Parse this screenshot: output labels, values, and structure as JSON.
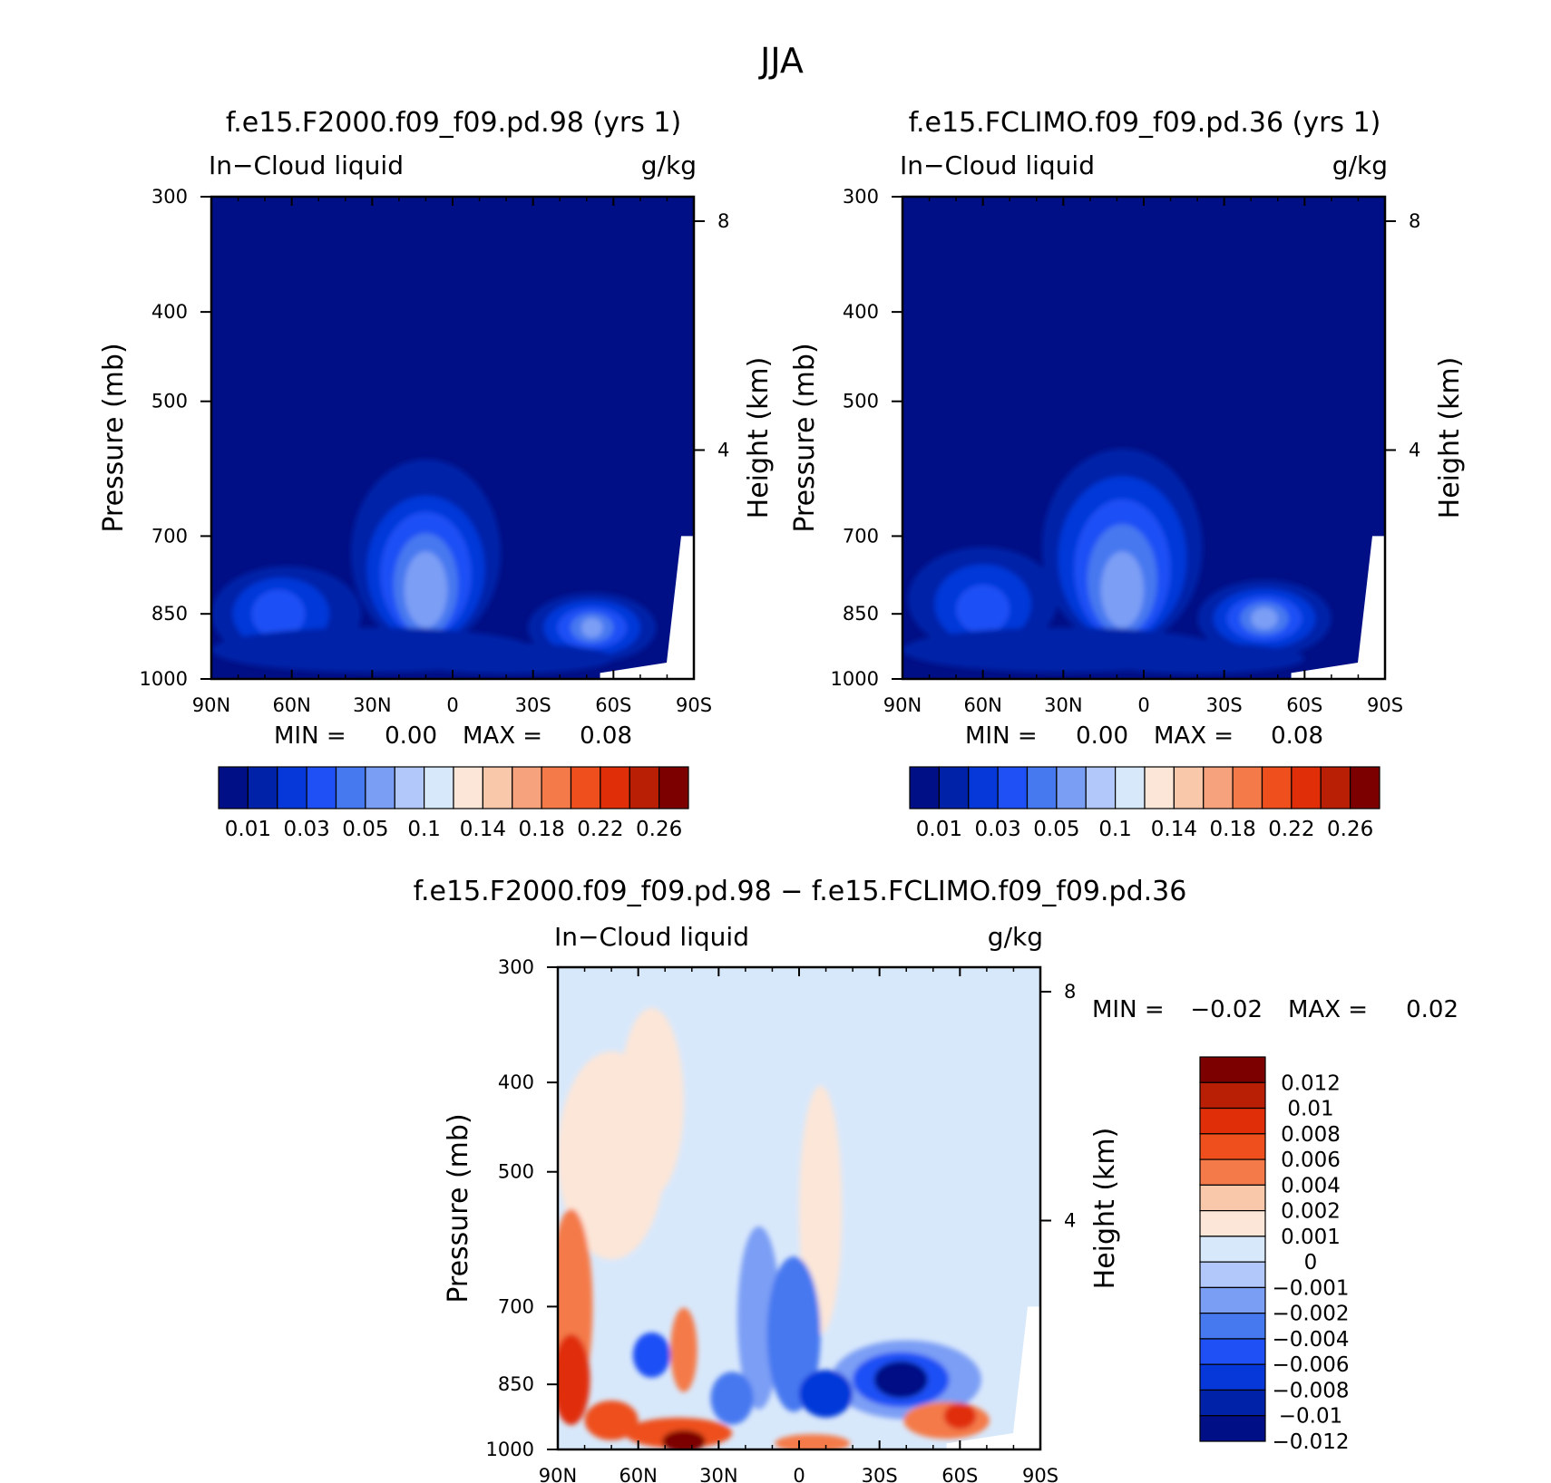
{
  "figure": {
    "title": "JJA"
  },
  "chart_data": [
    {
      "type": "heatmap",
      "title": "f.e15.F2000.f09_f09.pd.98 (yrs  1)",
      "left_label": "In−Cloud liquid",
      "units": "g/kg",
      "xlabel": "",
      "ylabel": "Pressure (mb)",
      "ylabel_right": "Height (km)",
      "x_ticks": [
        "90N",
        "60N",
        "30N",
        "0",
        "30S",
        "60S",
        "90S"
      ],
      "x_values": [
        90,
        60,
        30,
        0,
        -30,
        -60,
        -90
      ],
      "y_ticks": [
        "300",
        "400",
        "500",
        "700",
        "850",
        "1000"
      ],
      "y_values": [
        300,
        400,
        500,
        700,
        850,
        1000
      ],
      "ylim": [
        1000,
        300
      ],
      "height_ticks": [
        "8",
        "4"
      ],
      "height_values": [
        8,
        4
      ],
      "stats": {
        "min_label": "MIN =",
        "min": "0.00",
        "max_label": "MAX =",
        "max": "0.08"
      },
      "colorbar": {
        "orientation": "horizontal",
        "colors": [
          "#000f85",
          "#0022a8",
          "#0537d9",
          "#1e50f5",
          "#4678f0",
          "#7b9ef5",
          "#b3c8fa",
          "#d8e8fb",
          "#fce6d8",
          "#f9c7aa",
          "#f6a27c",
          "#f47a4a",
          "#ee4f1d",
          "#e02f08",
          "#b81f04",
          "#7d0000"
        ],
        "labels": [
          "0.01",
          "0.03",
          "0.05",
          "0.1",
          "0.14",
          "0.18",
          "0.22",
          "0.26"
        ]
      },
      "field": {
        "background": "#000f85",
        "note": "Contours of zonal-mean in-cloud liquid water (g/kg); peak near 10N around 600-850 mb, secondary maxima near 60N and 55S",
        "blobs": [
          {
            "lat": 10,
            "p": 730,
            "dlat": 28,
            "dp": 260,
            "level": 1
          },
          {
            "lat": 10,
            "p": 760,
            "dlat": 22,
            "dp": 210,
            "level": 2
          },
          {
            "lat": 10,
            "p": 770,
            "dlat": 17,
            "dp": 180,
            "level": 3
          },
          {
            "lat": 10,
            "p": 790,
            "dlat": 12,
            "dp": 150,
            "level": 4
          },
          {
            "lat": 10,
            "p": 800,
            "dlat": 8,
            "dp": 110,
            "level": 5
          },
          {
            "lat": 62,
            "p": 850,
            "dlat": 28,
            "dp": 150,
            "level": 1
          },
          {
            "lat": 64,
            "p": 850,
            "dlat": 18,
            "dp": 110,
            "level": 2
          },
          {
            "lat": 65,
            "p": 850,
            "dlat": 10,
            "dp": 70,
            "level": 3
          },
          {
            "lat": -52,
            "p": 880,
            "dlat": 24,
            "dp": 110,
            "level": 1
          },
          {
            "lat": -52,
            "p": 880,
            "dlat": 18,
            "dp": 85,
            "level": 2
          },
          {
            "lat": -52,
            "p": 880,
            "dlat": 13,
            "dp": 60,
            "level": 3
          },
          {
            "lat": -52,
            "p": 880,
            "dlat": 8,
            "dp": 40,
            "level": 4
          },
          {
            "lat": -52,
            "p": 880,
            "dlat": 4,
            "dp": 22,
            "level": 5
          },
          {
            "lat": 30,
            "p": 930,
            "dlat": 60,
            "dp": 70,
            "level": 1
          },
          {
            "lat": -20,
            "p": 950,
            "dlat": 40,
            "dp": 45,
            "level": 1
          }
        ]
      }
    },
    {
      "type": "heatmap",
      "title": "f.e15.FCLIMO.f09_f09.pd.36 (yrs  1)",
      "left_label": "In−Cloud liquid",
      "units": "g/kg",
      "xlabel": "",
      "ylabel": "Pressure (mb)",
      "ylabel_right": "Height (km)",
      "x_ticks": [
        "90N",
        "60N",
        "30N",
        "0",
        "30S",
        "60S",
        "90S"
      ],
      "x_values": [
        90,
        60,
        30,
        0,
        -30,
        -60,
        -90
      ],
      "y_ticks": [
        "300",
        "400",
        "500",
        "700",
        "850",
        "1000"
      ],
      "y_values": [
        300,
        400,
        500,
        700,
        850,
        1000
      ],
      "ylim": [
        1000,
        300
      ],
      "height_ticks": [
        "8",
        "4"
      ],
      "height_values": [
        8,
        4
      ],
      "stats": {
        "min_label": "MIN =",
        "min": "0.00",
        "max_label": "MAX =",
        "max": "0.08"
      },
      "colorbar": {
        "orientation": "horizontal",
        "colors": [
          "#000f85",
          "#0022a8",
          "#0537d9",
          "#1e50f5",
          "#4678f0",
          "#7b9ef5",
          "#b3c8fa",
          "#d8e8fb",
          "#fce6d8",
          "#f9c7aa",
          "#f6a27c",
          "#f47a4a",
          "#ee4f1d",
          "#e02f08",
          "#b81f04",
          "#7d0000"
        ],
        "labels": [
          "0.01",
          "0.03",
          "0.05",
          "0.1",
          "0.14",
          "0.18",
          "0.22",
          "0.26"
        ]
      },
      "field": {
        "background": "#000f85",
        "note": "Contours of zonal-mean in-cloud liquid water (g/kg); peak near 8N, secondary maxima near 60N and 45S",
        "blobs": [
          {
            "lat": 8,
            "p": 720,
            "dlat": 30,
            "dp": 270,
            "level": 1
          },
          {
            "lat": 8,
            "p": 740,
            "dlat": 24,
            "dp": 230,
            "level": 2
          },
          {
            "lat": 8,
            "p": 760,
            "dlat": 18,
            "dp": 200,
            "level": 3
          },
          {
            "lat": 8,
            "p": 780,
            "dlat": 13,
            "dp": 160,
            "level": 4
          },
          {
            "lat": 8,
            "p": 800,
            "dlat": 8,
            "dp": 110,
            "level": 5
          },
          {
            "lat": 60,
            "p": 820,
            "dlat": 28,
            "dp": 160,
            "level": 1
          },
          {
            "lat": 60,
            "p": 830,
            "dlat": 18,
            "dp": 120,
            "level": 2
          },
          {
            "lat": 60,
            "p": 840,
            "dlat": 10,
            "dp": 70,
            "level": 3
          },
          {
            "lat": -45,
            "p": 860,
            "dlat": 25,
            "dp": 120,
            "level": 1
          },
          {
            "lat": -45,
            "p": 860,
            "dlat": 19,
            "dp": 90,
            "level": 2
          },
          {
            "lat": -45,
            "p": 860,
            "dlat": 14,
            "dp": 65,
            "level": 3
          },
          {
            "lat": -45,
            "p": 860,
            "dlat": 9,
            "dp": 45,
            "level": 4
          },
          {
            "lat": -45,
            "p": 860,
            "dlat": 5,
            "dp": 25,
            "level": 5
          },
          {
            "lat": 30,
            "p": 930,
            "dlat": 60,
            "dp": 70,
            "level": 1
          },
          {
            "lat": -20,
            "p": 950,
            "dlat": 40,
            "dp": 45,
            "level": 1
          }
        ]
      }
    },
    {
      "type": "heatmap",
      "title": "f.e15.F2000.f09_f09.pd.98 − f.e15.FCLIMO.f09_f09.pd.36",
      "left_label": "In−Cloud liquid",
      "units": "g/kg",
      "xlabel": "",
      "ylabel": "Pressure (mb)",
      "ylabel_right": "Height (km)",
      "x_ticks": [
        "90N",
        "60N",
        "30N",
        "0",
        "30S",
        "60S",
        "90S"
      ],
      "x_values": [
        90,
        60,
        30,
        0,
        -30,
        -60,
        -90
      ],
      "y_ticks": [
        "300",
        "400",
        "500",
        "700",
        "850",
        "1000"
      ],
      "y_values": [
        300,
        400,
        500,
        700,
        850,
        1000
      ],
      "ylim": [
        1000,
        300
      ],
      "height_ticks": [
        "8",
        "4"
      ],
      "height_values": [
        8,
        4
      ],
      "stats": {
        "min_label": "MIN =",
        "min": "−0.02",
        "max_label": "MAX =",
        "max": "0.02"
      },
      "colorbar": {
        "orientation": "vertical",
        "colors": [
          "#7d0000",
          "#b81f04",
          "#e02f08",
          "#ee4f1d",
          "#f47a4a",
          "#f9c7aa",
          "#fce6d8",
          "#d8e8fb",
          "#b3c8fa",
          "#7b9ef5",
          "#4678f0",
          "#1e50f5",
          "#0537d9",
          "#0022a8",
          "#000f85"
        ],
        "labels": [
          "0.012",
          "0.01",
          "0.008",
          "0.006",
          "0.004",
          "0.002",
          "0.001",
          "0",
          "−0.001",
          "−0.002",
          "−0.004",
          "−0.006",
          "−0.008",
          "−0.01",
          "−0.012"
        ]
      },
      "field": {
        "background": "#d8e8fb",
        "note": "Difference field: positive (red) near surface in NH high latitudes and near 45S-60S at 900-1000 mb; negative (blue) centered ~35S-45S at 800-850 mb and 15S near 850 mb",
        "blobs": [
          {
            "lat": 70,
            "p": 480,
            "dlat": 20,
            "dp": 190,
            "value": 0.001
          },
          {
            "lat": 85,
            "p": 700,
            "dlat": 8,
            "dp": 260,
            "value": 0.004
          },
          {
            "lat": 85,
            "p": 840,
            "dlat": 7,
            "dp": 140,
            "value": 0.008
          },
          {
            "lat": 43,
            "p": 780,
            "dlat": 5,
            "dp": 120,
            "value": 0.004
          },
          {
            "lat": 55,
            "p": 790,
            "dlat": 7,
            "dp": 60,
            "value": -0.006
          },
          {
            "lat": 45,
            "p": 960,
            "dlat": 20,
            "dp": 45,
            "value": 0.006
          },
          {
            "lat": 43,
            "p": 980,
            "dlat": 8,
            "dp": 30,
            "value": 0.012
          },
          {
            "lat": 70,
            "p": 930,
            "dlat": 10,
            "dp": 60,
            "value": 0.006
          },
          {
            "lat": 25,
            "p": 880,
            "dlat": 8,
            "dp": 80,
            "value": -0.004
          },
          {
            "lat": 15,
            "p": 720,
            "dlat": 8,
            "dp": 250,
            "value": -0.002
          },
          {
            "lat": 2,
            "p": 750,
            "dlat": 10,
            "dp": 220,
            "value": -0.004
          },
          {
            "lat": -10,
            "p": 870,
            "dlat": 10,
            "dp": 70,
            "value": -0.008
          },
          {
            "lat": -40,
            "p": 840,
            "dlat": 28,
            "dp": 120,
            "value": -0.002
          },
          {
            "lat": -38,
            "p": 840,
            "dlat": 18,
            "dp": 80,
            "value": -0.006
          },
          {
            "lat": -38,
            "p": 840,
            "dlat": 10,
            "dp": 50,
            "value": -0.012
          },
          {
            "lat": -55,
            "p": 930,
            "dlat": 16,
            "dp": 55,
            "value": 0.004
          },
          {
            "lat": -60,
            "p": 920,
            "dlat": 6,
            "dp": 35,
            "value": 0.008
          },
          {
            "lat": -5,
            "p": 985,
            "dlat": 14,
            "dp": 22,
            "value": 0.004
          },
          {
            "lat": -8,
            "p": 550,
            "dlat": 8,
            "dp": 260,
            "value": 0.001
          },
          {
            "lat": 55,
            "p": 420,
            "dlat": 12,
            "dp": 150,
            "value": 0.001
          }
        ]
      }
    }
  ]
}
